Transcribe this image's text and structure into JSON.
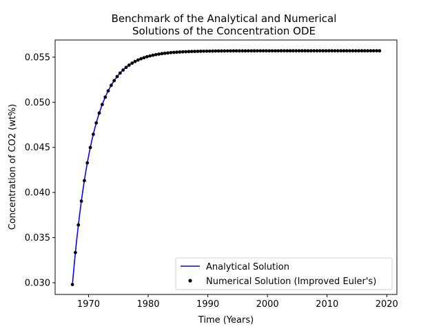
{
  "chart_data": {
    "type": "line",
    "title_line1": "Benchmark of the Analytical and Numerical",
    "title_line2": "Solutions of the Concentration ODE",
    "xlabel": "Time (Years)",
    "ylabel": "Concentration of CO2 (wt%)",
    "xlim": [
      1964.4,
      2021.7
    ],
    "ylim": [
      0.0287,
      0.0569
    ],
    "xticks": [
      1970,
      1980,
      1990,
      2000,
      2010,
      2020
    ],
    "xtick_labels": [
      "1970",
      "1980",
      "1990",
      "2000",
      "2010",
      "2020"
    ],
    "yticks": [
      0.03,
      0.035,
      0.04,
      0.045,
      0.05,
      0.055
    ],
    "ytick_labels": [
      "0.030",
      "0.035",
      "0.040",
      "0.045",
      "0.050",
      "0.055"
    ],
    "grid": false,
    "legend_position": "lower-right",
    "model": {
      "c0": 0.0298,
      "c_inf": 0.0557,
      "t0": 1967.3,
      "tau": 3.4
    },
    "series": [
      {
        "name": "Analytical Solution",
        "kind": "line",
        "color": "#0000ff",
        "x_range": [
          1967.3,
          2018.7
        ]
      },
      {
        "name": "Numerical Solution (Improved Euler's)",
        "kind": "markers",
        "color": "#000000",
        "x_start": 1967.3,
        "x_step": 0.5,
        "count": 104
      }
    ]
  }
}
